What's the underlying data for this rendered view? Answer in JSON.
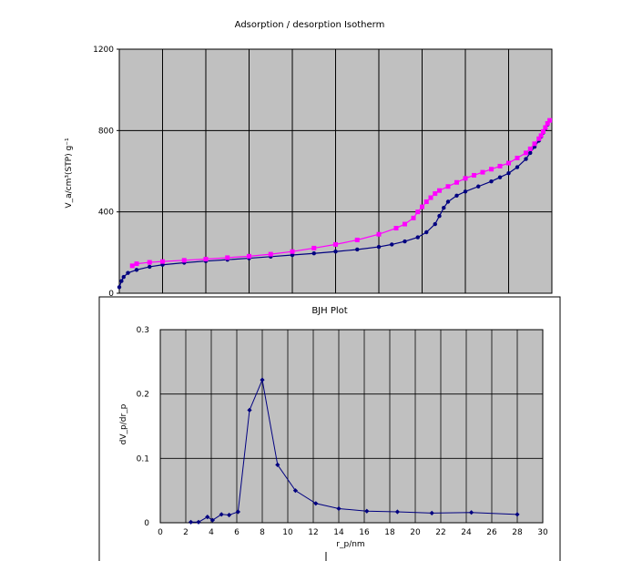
{
  "chart_data": [
    {
      "type": "scatter",
      "title": "Adsorption / desorption Isotherm",
      "ylabel": "V_a/cm³(STP) g⁻¹",
      "xlabel": "",
      "ylim": [
        0,
        1200
      ],
      "xlim": [
        0,
        1
      ],
      "yticks": [
        "1200",
        "800",
        "400",
        "0"
      ],
      "grid": true,
      "background": "#c0c0c0",
      "series": [
        {
          "color": "#000080",
          "marker": "circle",
          "x": [
            0.0,
            0.005,
            0.01,
            0.02,
            0.04,
            0.07,
            0.1,
            0.15,
            0.2,
            0.25,
            0.3,
            0.35,
            0.4,
            0.45,
            0.5,
            0.55,
            0.6,
            0.63,
            0.66,
            0.69,
            0.71,
            0.73,
            0.74,
            0.75,
            0.76,
            0.78,
            0.8,
            0.83,
            0.86,
            0.88,
            0.9,
            0.92,
            0.94,
            0.95,
            0.96,
            0.97,
            0.975,
            0.98,
            0.985,
            0.99,
            0.995
          ],
          "y": [
            30,
            60,
            80,
            100,
            115,
            130,
            140,
            150,
            158,
            165,
            172,
            180,
            188,
            196,
            205,
            215,
            228,
            240,
            255,
            275,
            300,
            340,
            380,
            420,
            450,
            480,
            500,
            525,
            550,
            570,
            590,
            620,
            660,
            690,
            720,
            750,
            770,
            790,
            810,
            830,
            850
          ]
        },
        {
          "color": "#ff00ff",
          "marker": "square",
          "x": [
            0.995,
            0.99,
            0.985,
            0.98,
            0.975,
            0.97,
            0.96,
            0.95,
            0.94,
            0.92,
            0.9,
            0.88,
            0.86,
            0.84,
            0.82,
            0.8,
            0.78,
            0.76,
            0.74,
            0.73,
            0.72,
            0.71,
            0.7,
            0.69,
            0.68,
            0.66,
            0.64,
            0.6,
            0.55,
            0.5,
            0.45,
            0.4,
            0.35,
            0.3,
            0.25,
            0.2,
            0.15,
            0.1,
            0.07,
            0.04,
            0.03
          ],
          "y": [
            850,
            835,
            815,
            795,
            775,
            760,
            735,
            710,
            690,
            665,
            640,
            625,
            610,
            595,
            580,
            565,
            545,
            525,
            505,
            490,
            470,
            450,
            425,
            400,
            370,
            340,
            320,
            290,
            262,
            240,
            222,
            205,
            192,
            182,
            175,
            168,
            162,
            156,
            152,
            145,
            135
          ]
        }
      ]
    },
    {
      "type": "line",
      "title": "BJH Plot",
      "ylabel": "dV_p/dr_p",
      "xlabel": "r_p/nm",
      "xlim": [
        0,
        30
      ],
      "ylim": [
        0,
        0.3
      ],
      "xticks": [
        0,
        2,
        4,
        6,
        8,
        10,
        12,
        14,
        16,
        18,
        20,
        22,
        24,
        26,
        28,
        30
      ],
      "yticks": [
        0,
        0.1,
        0.2,
        0.3
      ],
      "ytick_labels": [
        "0",
        "0.1",
        "0.2",
        "0.3"
      ],
      "grid": true,
      "background": "#c0c0c0",
      "series": [
        {
          "color": "#000080",
          "x": [
            2.4,
            3.0,
            3.7,
            4.1,
            4.8,
            5.4,
            6.1,
            7.0,
            8.0,
            9.2,
            10.6,
            12.2,
            14.0,
            16.2,
            18.6,
            21.3,
            24.4,
            28.0
          ],
          "y": [
            0.001,
            0.001,
            0.009,
            0.004,
            0.013,
            0.012,
            0.017,
            0.175,
            0.222,
            0.09,
            0.05,
            0.03,
            0.022,
            0.018,
            0.017,
            0.015,
            0.016,
            0.013
          ]
        }
      ],
      "legend": ""
    }
  ]
}
